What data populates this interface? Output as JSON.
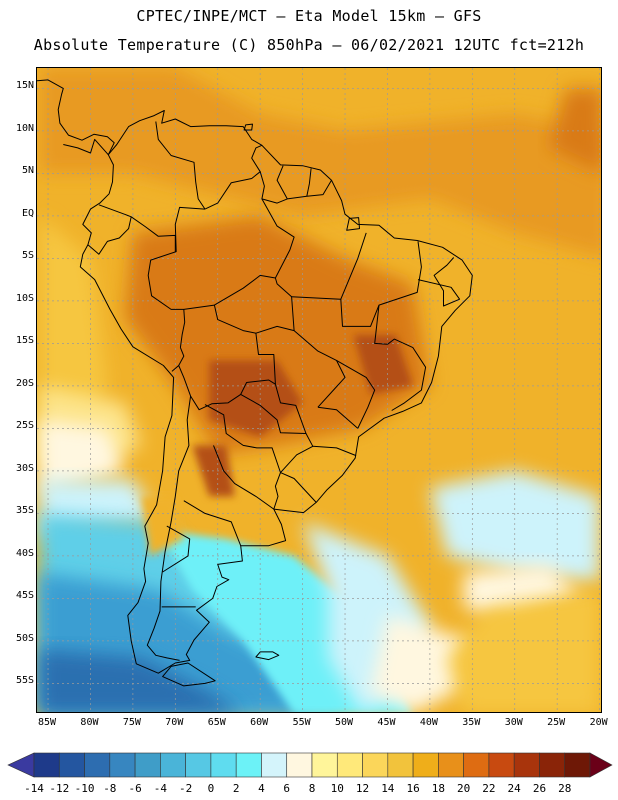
{
  "title_line1": "CPTEC/INPE/MCT –  Eta Model 15km – GFS",
  "title_line2": "Absolute Temperature (C) 850hPa – 06/02/2021 12UTC fct=212h",
  "lat_labels": [
    "15N",
    "10N",
    "5N",
    "EQ",
    "5S",
    "10S",
    "15S",
    "20S",
    "25S",
    "30S",
    "35S",
    "40S",
    "45S",
    "50S",
    "55S"
  ],
  "lon_labels": [
    "85W",
    "80W",
    "75W",
    "70W",
    "65W",
    "60W",
    "55W",
    "50W",
    "45W",
    "40W",
    "35W",
    "30W",
    "25W",
    "20W"
  ],
  "colorbar": {
    "labels": [
      "-14",
      "-12",
      "-10",
      "-8",
      "-6",
      "-4",
      "-2",
      "0",
      "2",
      "4",
      "6",
      "8",
      "10",
      "12",
      "14",
      "16",
      "18",
      "20",
      "22",
      "24",
      "26",
      "28"
    ],
    "colors": [
      "#1e3a8a",
      "#2456a0",
      "#2d6db0",
      "#3786c0",
      "#3f9dc8",
      "#4ab4d8",
      "#56c8e4",
      "#5fdcef",
      "#6cf2f7",
      "#d4f4fb",
      "#fff7e0",
      "#fff59a",
      "#ffe97a",
      "#fbd65a",
      "#f2c33c",
      "#efae1a",
      "#e8901a",
      "#de6c12",
      "#c84a10",
      "#a8340c",
      "#8a2408",
      "#6e1806"
    ],
    "under_color": "#3a3aa0",
    "over_color": "#6a0018"
  },
  "field_colors": {
    "very_cold": "#2a6fb0",
    "cold": "#3a9ed2",
    "cool": "#5fcfe8",
    "cyan": "#6ef0f8",
    "pale_cyan": "#cdf3fb",
    "cream": "#fff7e0",
    "pale_yellow": "#fde48a",
    "yellow": "#f6c640",
    "gold": "#f0b22a",
    "orange": "#e89a22",
    "dark_orange": "#d97a18",
    "red_brown": "#b45012",
    "coast": "#000000"
  }
}
